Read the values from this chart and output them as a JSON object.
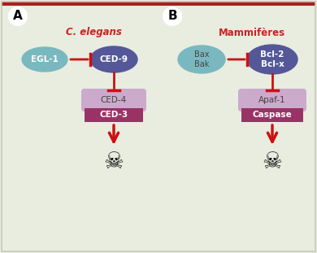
{
  "bg_color": "#e8ede0",
  "border_outer_color": "#c8c8b8",
  "border_top_color": "#aa2020",
  "panel_a_label": "A",
  "panel_b_label": "B",
  "panel_a_title": "C. elegans",
  "panel_b_title": "Mammifères",
  "arrow_color": "#cc1111",
  "egl1_text": "EGL-1",
  "ced9_text": "CED-9",
  "ced4_text": "CED-4",
  "ced3_text": "CED-3",
  "bax_text": "Bax\nBak",
  "bcl2_text": "Bcl-2\nBcl-x",
  "apaf1_text": "Apaf-1",
  "caspase_text": "Caspase",
  "egl1_color": "#7ab8c0",
  "ced9_color": "#545898",
  "ced4_color": "#ccaacc",
  "ced3_color": "#993366",
  "bax_color": "#7ab8c0",
  "bcl2_color": "#545898",
  "apaf1_color": "#ccaacc",
  "caspase_color": "#993366",
  "title_color": "#cc2222",
  "label_circle_color": "#ffffff",
  "skull_color": "#111111",
  "egl1_text_color": "#ffffff",
  "bax_text_color": "#444444"
}
